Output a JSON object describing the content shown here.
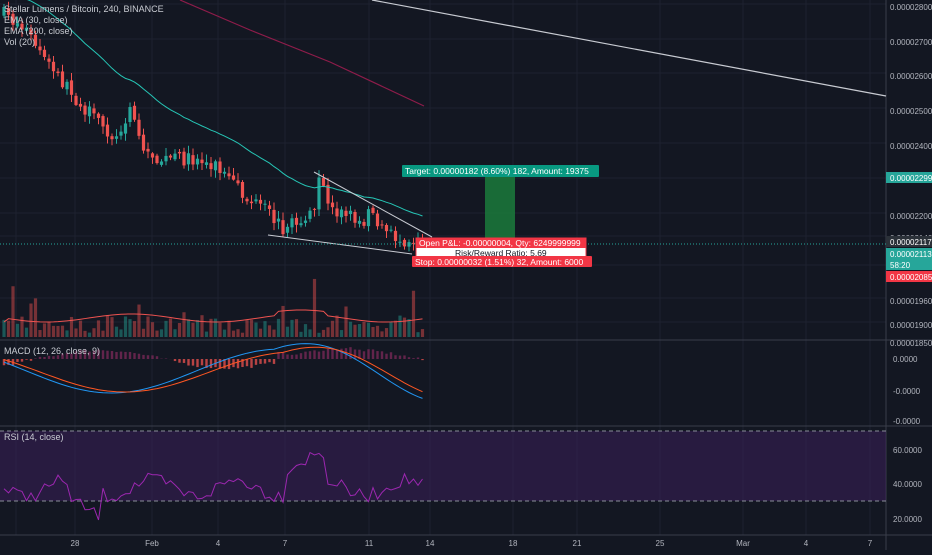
{
  "header": {
    "symbol_line": "Stellar Lumens / Bitcoin, 240, BINANCE",
    "indicators": [
      "EMA (30, close)",
      "EMA (200, close)",
      "Vol (20)"
    ]
  },
  "macd": {
    "label": "MACD (12, 26, close, 9)",
    "ticks": [
      "0.0000",
      "-0.0000",
      "-0.0000"
    ]
  },
  "rsi": {
    "label": "RSI (14, close)",
    "ticks": [
      "60.0000",
      "40.0000",
      "20.0000"
    ]
  },
  "price_axis": {
    "ticks": [
      "0.00002800",
      "0.00002700",
      "0.00002600",
      "0.00002500",
      "0.00002400",
      "0.00002200",
      "0.00002140",
      "0.00002085",
      "0.00001960",
      "0.00001900",
      "0.00001850"
    ],
    "tags": [
      {
        "label": "0.00002299",
        "color": "#26a69a"
      },
      {
        "label": "0.00002117",
        "color": "#2b3139"
      },
      {
        "label": "0.00002113",
        "color": "#26a69a"
      },
      {
        "label": "58:20",
        "color": "#26a69a"
      },
      {
        "label": "0.00002085",
        "color": "#f23645"
      }
    ]
  },
  "time_axis": [
    "28",
    "Feb",
    "4",
    "7",
    "11",
    "14",
    "18",
    "21",
    "25",
    "Mar",
    "4",
    "7"
  ],
  "position": {
    "target": "Target: 0.00000182 (8.60%) 182, Amount: 19375",
    "open_pl": "Open P&L: -0.00000004, Qty: 6249999999",
    "rr": "Risk/Reward Ratio: 5.69",
    "stop": "Stop: 0.00000032 (1.51%) 32, Amount: 6000"
  },
  "colors": {
    "background": "#131722",
    "up": "#26a69a",
    "down": "#ef5350",
    "ema30": "#26c6b6",
    "ema200": "#8e1c4a",
    "macd": "#2196f3",
    "signal": "#ff5722",
    "rsi": "#9c27b0",
    "target_zone": "#1b7a3b",
    "stop_tag": "#f23645",
    "target_tag": "#089981"
  },
  "chart_data": {
    "type": "candlestick",
    "x_range": [
      "Jan 26",
      "Mar 8"
    ],
    "y_range": [
      1.85e-05,
      2.82e-05
    ],
    "series": [
      {
        "name": "EMA (30, close)",
        "kind": "line",
        "values": [
          2.79e-05,
          2.77e-05,
          2.71e-05,
          2.64e-05,
          2.58e-05,
          2.54e-05,
          2.5e-05,
          2.45e-05,
          2.41e-05,
          2.38e-05,
          2.35e-05,
          2.31e-05,
          2.28e-05,
          2.25e-05,
          2.22e-05,
          2.2e-05,
          2.18e-05,
          2.17e-05,
          2.16e-05,
          2.15e-05,
          2.13e-05
        ]
      },
      {
        "name": "EMA (200, close)",
        "kind": "line",
        "values": [
          2.82e-05,
          2.78e-05,
          2.73e-05,
          2.68e-05,
          2.63e-05,
          2.59e-05,
          2.55e-05,
          2.52e-05
        ]
      }
    ]
  }
}
